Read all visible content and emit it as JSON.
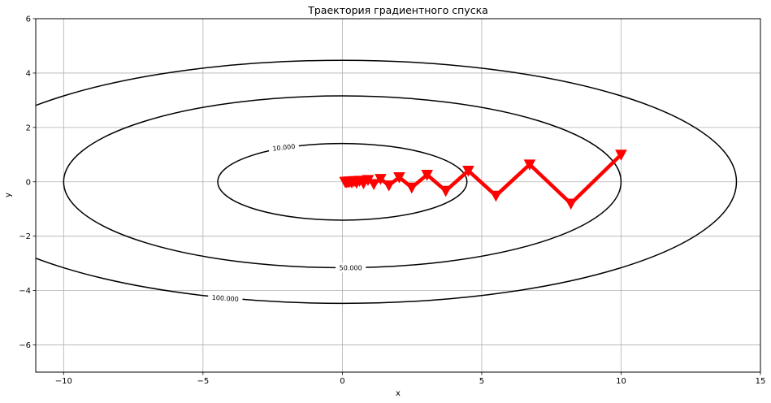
{
  "chart_data": {
    "type": "line",
    "title": "Траектория градиентного спуска",
    "xlabel": "x",
    "ylabel": "y",
    "xlim": [
      -11,
      15
    ],
    "ylim": [
      -7,
      6
    ],
    "xticks": [
      -10,
      -5,
      0,
      5,
      10,
      15
    ],
    "yticks": [
      -6,
      -4,
      -2,
      0,
      2,
      4,
      6
    ],
    "xtick_labels": [
      "−10",
      "−5",
      "0",
      "5",
      "10",
      "15"
    ],
    "ytick_labels": [
      "−6",
      "−4",
      "−2",
      "0",
      "2",
      "4",
      "6"
    ],
    "grid": true,
    "contours": [
      {
        "level": 10,
        "label": "10.000",
        "semi_x": 4.47,
        "semi_y": 1.41,
        "label_x": -2.1,
        "label_y": 1.27,
        "label_angle": -6
      },
      {
        "level": 50,
        "label": "50.000",
        "semi_x": 10.0,
        "semi_y": 3.16,
        "label_x": 0.3,
        "label_y": -3.16,
        "label_angle": 0
      },
      {
        "level": 100,
        "label": "100.000",
        "semi_x": 14.14,
        "semi_y": 4.47,
        "label_x": -4.2,
        "label_y": -4.28,
        "label_angle": 4
      }
    ],
    "contour_color": "#000000",
    "series": [
      {
        "color": "#ff0000",
        "marker": "triangle-down",
        "x": [
          10.0,
          8.2,
          6.72,
          5.51,
          4.52,
          3.71,
          3.04,
          2.49,
          2.04,
          1.67,
          1.37,
          1.13,
          0.92,
          0.76,
          0.62,
          0.51,
          0.42,
          0.34,
          0.28,
          0.23,
          0.19,
          0.15,
          0.13,
          0.1
        ],
        "y": [
          1.0,
          -0.8,
          0.64,
          -0.51,
          0.41,
          -0.33,
          0.26,
          -0.21,
          0.17,
          -0.13,
          0.11,
          -0.08,
          0.07,
          -0.05,
          0.04,
          -0.03,
          0.03,
          -0.02,
          0.02,
          -0.01,
          0.01,
          -0.01,
          0.0,
          0.0
        ]
      }
    ]
  }
}
